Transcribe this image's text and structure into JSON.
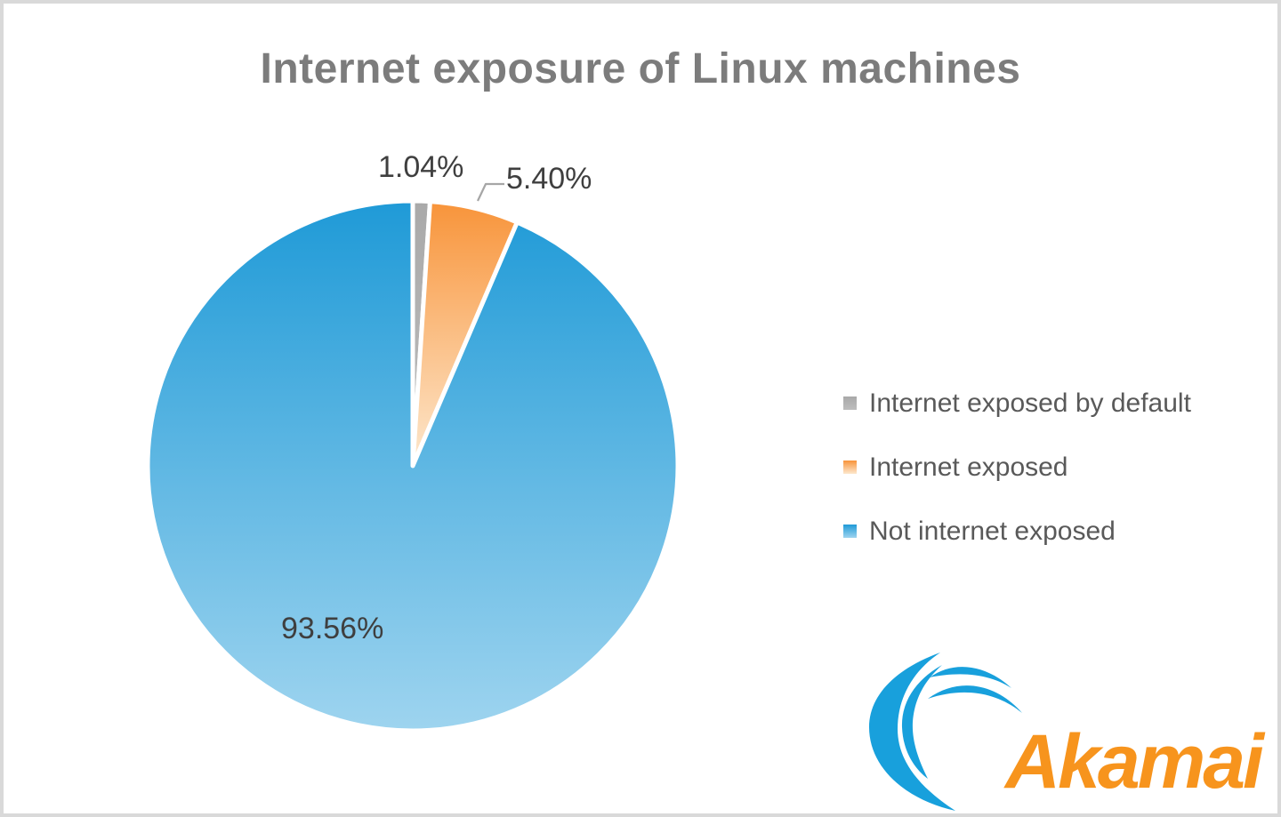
{
  "chart_data": {
    "type": "pie",
    "title": "Internet exposure of Linux machines",
    "legend_position": "right",
    "data_labels_shown": true,
    "slices": [
      {
        "label": "Internet exposed by default",
        "value": 1.04,
        "display": "1.04%",
        "color_top": "#a9a9a9",
        "color_bottom": "#bdbdbd"
      },
      {
        "label": "Internet exposed",
        "value": 5.4,
        "display": "5.40%",
        "color_top": "#f8943a",
        "color_bottom": "#fde8ce"
      },
      {
        "label": "Not internet exposed",
        "value": 93.56,
        "display": "93.56%",
        "color_top": "#1f9ad7",
        "color_bottom": "#9ed4ef"
      }
    ]
  },
  "legend": {
    "items": [
      {
        "label": "Internet exposed by default"
      },
      {
        "label": "Internet exposed"
      },
      {
        "label": "Not internet exposed"
      }
    ]
  },
  "logo": {
    "text": "Akamai",
    "brand_orange": "#f7941d",
    "brand_blue": "#18a0dc"
  }
}
